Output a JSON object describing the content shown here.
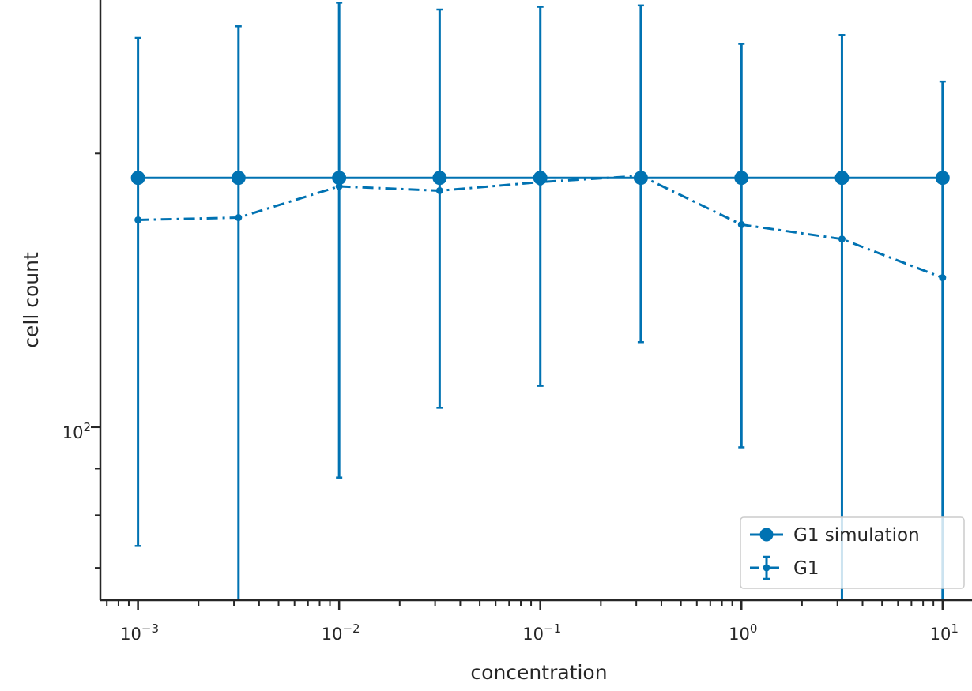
{
  "chart_data": {
    "type": "line",
    "xlabel": "concentration",
    "ylabel": "cell count",
    "xscale": "log",
    "yscale": "log",
    "xlim": [
      0.00065,
      14
    ],
    "ylim": [
      64.5,
      295
    ],
    "x_ticks": [
      {
        "value": 0.001,
        "base": "10",
        "exp": "−3"
      },
      {
        "value": 0.01,
        "base": "10",
        "exp": "−2"
      },
      {
        "value": 0.1,
        "base": "10",
        "exp": "−1"
      },
      {
        "value": 1,
        "base": "10",
        "exp": "0"
      },
      {
        "value": 10,
        "base": "10",
        "exp": "1"
      }
    ],
    "y_ticks": [
      {
        "value": 100,
        "base": "10",
        "exp": "2"
      }
    ],
    "grid": false,
    "legend_position": "bottom-right",
    "color": "#0072b2",
    "series": [
      {
        "name": "G1 simulation",
        "style": "solid-line-large-markers",
        "x": [
          0.001,
          0.00316,
          0.01,
          0.0316,
          0.1,
          0.316,
          1,
          3.16,
          10
        ],
        "y": [
          188,
          188,
          188,
          188,
          188,
          188,
          188,
          188,
          188
        ]
      },
      {
        "name": "G1",
        "style": "dashdot-line-small-markers-errorbars",
        "x": [
          0.001,
          0.00316,
          0.01,
          0.0316,
          0.1,
          0.316,
          1,
          3.16,
          10
        ],
        "y": [
          169,
          170,
          184,
          182,
          186,
          189,
          167,
          161,
          146
        ],
        "yerr_low": [
          74,
          60,
          88,
          105,
          111,
          124,
          95,
          0,
          0
        ],
        "yerr_high": [
          268,
          276,
          293,
          288,
          290,
          291,
          264,
          270,
          240
        ]
      }
    ]
  }
}
